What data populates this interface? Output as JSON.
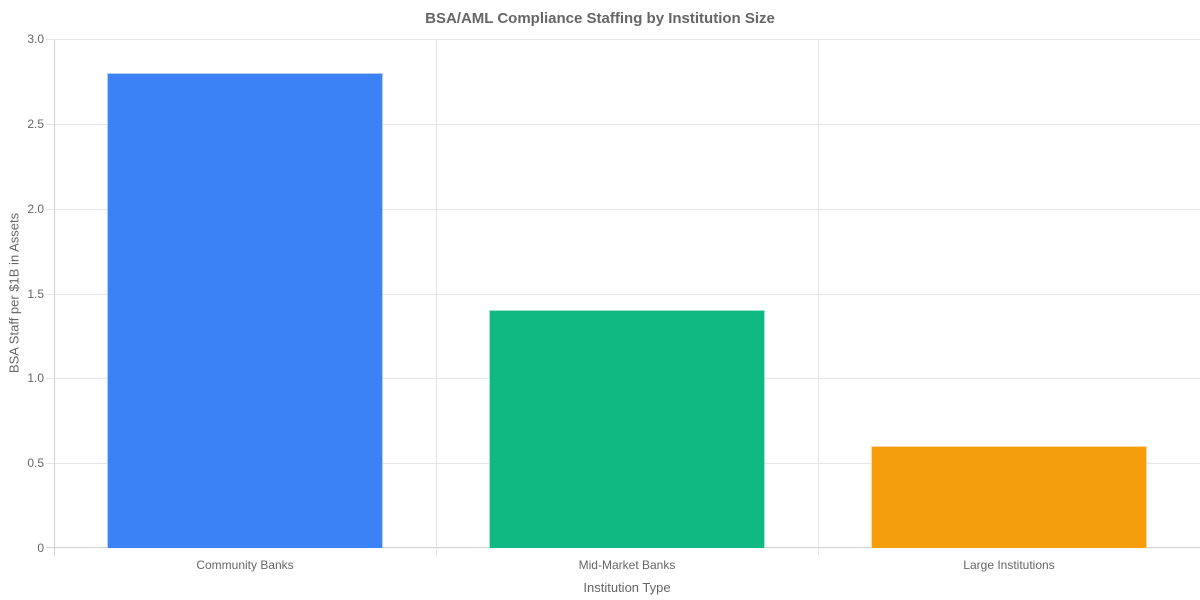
{
  "chart_data": {
    "type": "bar",
    "title": "BSA/AML Compliance Staffing by Institution Size",
    "xlabel": "Institution Type",
    "ylabel": "BSA Staff per $1B in Assets",
    "categories": [
      "Community Banks",
      "Mid-Market Banks",
      "Large Institutions"
    ],
    "values": [
      2.8,
      1.4,
      0.6
    ],
    "colors": [
      "#3b82f6",
      "#10b981",
      "#f59e0b"
    ],
    "ylim": [
      0,
      3.0
    ],
    "yticks": [
      "0",
      "0.5",
      "1.0",
      "1.5",
      "2.0",
      "2.5",
      "3.0"
    ],
    "grid": true,
    "legend": null
  }
}
